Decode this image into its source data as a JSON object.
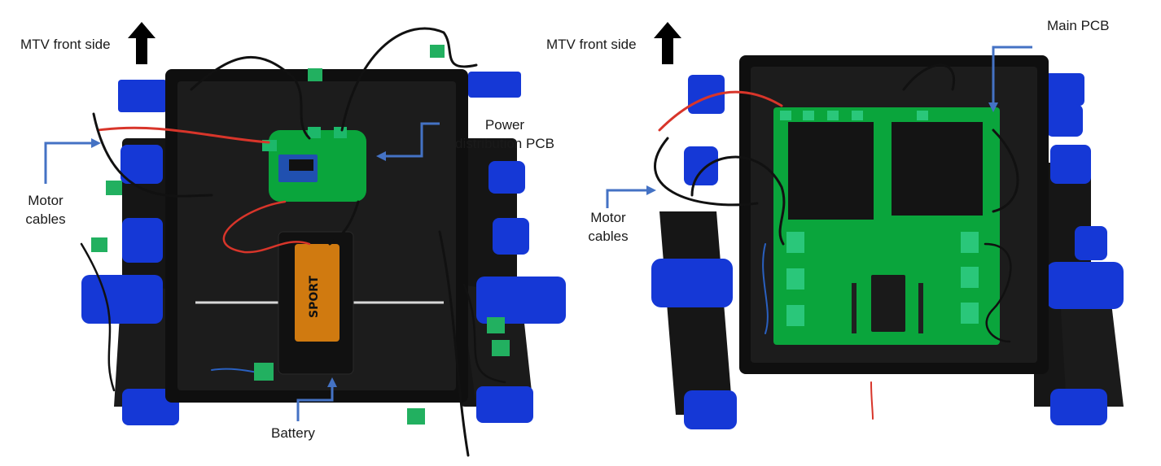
{
  "colors": {
    "background": "#ffffff",
    "box_black": "#111111",
    "leg_blue": "#1538d6",
    "pcb_green": "#0aa53c",
    "callout_arrow": "#4472c4",
    "wire_red": "#d8352a"
  },
  "left_photo": {
    "front_label": "MTV front side",
    "front_icon": "up-arrow-icon",
    "motor_cables_label_line1": "Motor",
    "motor_cables_label_line2": "cables",
    "power_pcb_label_line1": "Power",
    "power_pcb_label_line2": "distribution PCB",
    "battery_label": "Battery",
    "battery_print": "SPORT"
  },
  "right_photo": {
    "front_label": "MTV front side",
    "front_icon": "up-arrow-icon",
    "main_pcb_label": "Main PCB",
    "motor_cables_label_line1": "Motor",
    "motor_cables_label_line2": "cables"
  }
}
